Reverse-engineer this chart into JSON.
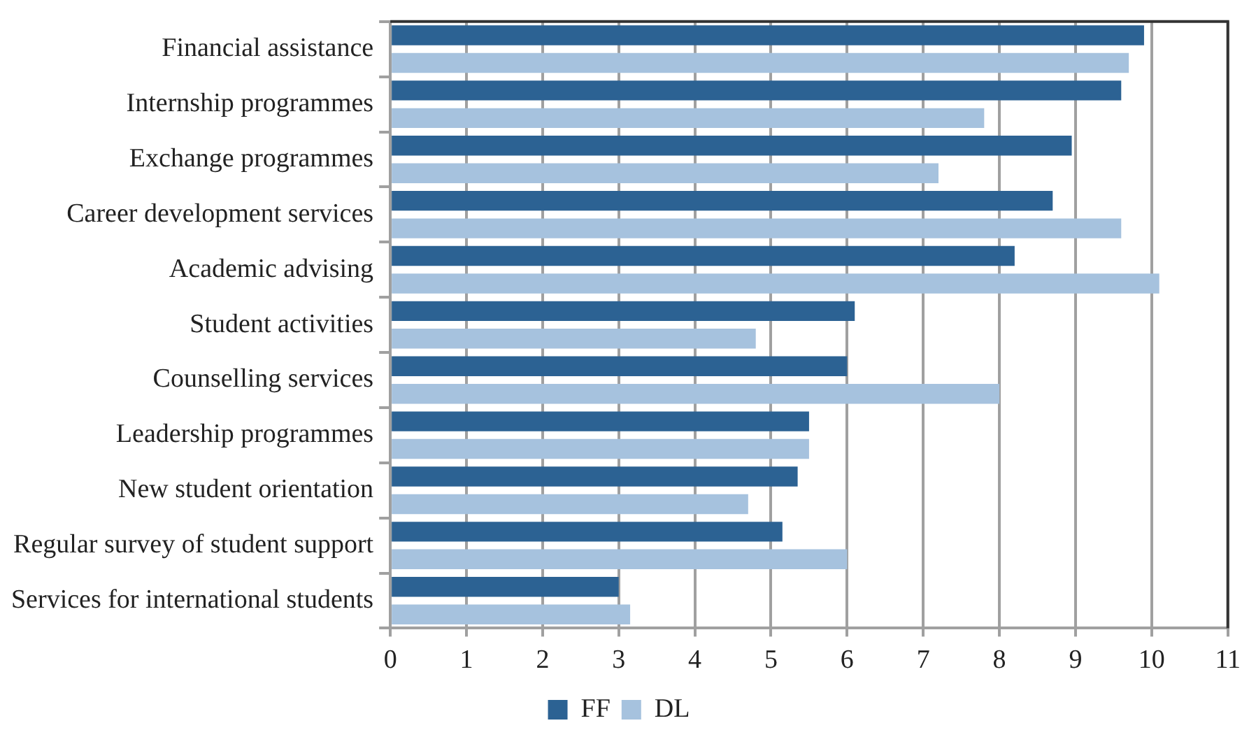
{
  "chart_data": {
    "type": "bar",
    "orientation": "horizontal",
    "categories": [
      "Financial assistance",
      "Internship programmes",
      "Exchange programmes",
      "Career development services",
      "Academic advising",
      "Student activities",
      "Counselling services",
      "Leadership programmes",
      "New student orientation",
      "Regular survey of student support",
      "Services for international students"
    ],
    "series": [
      {
        "name": "FF",
        "color": "#2c6293",
        "values": [
          9.9,
          9.6,
          8.95,
          8.7,
          8.2,
          6.1,
          6.0,
          5.5,
          5.35,
          5.15,
          3.0
        ]
      },
      {
        "name": "DL",
        "color": "#a6c2de",
        "values": [
          9.7,
          7.8,
          7.2,
          9.6,
          10.1,
          4.8,
          8.0,
          5.5,
          4.7,
          6.0,
          3.15
        ]
      }
    ],
    "xlim": [
      0,
      11
    ],
    "xticks": [
      0,
      1,
      2,
      3,
      4,
      5,
      6,
      7,
      8,
      9,
      10,
      11
    ],
    "grid": "x",
    "legend": "bottom"
  }
}
